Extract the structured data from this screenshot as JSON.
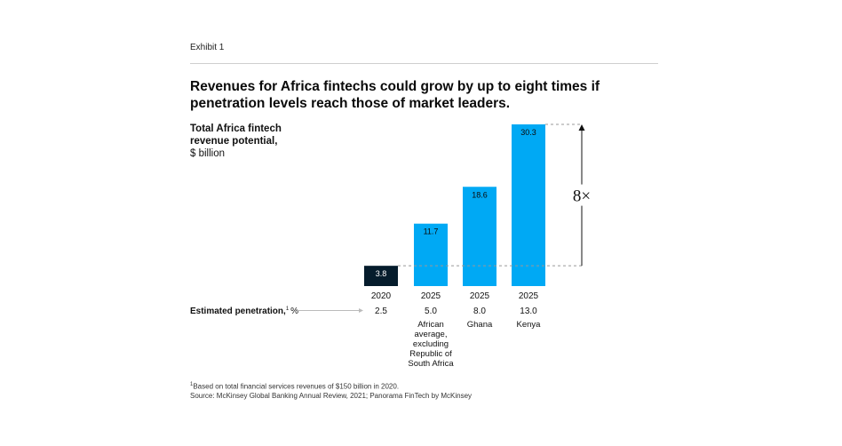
{
  "exhibit_label": "Exhibit 1",
  "title": "Revenues for Africa fintechs could grow by up to eight times if penetration levels reach those of market leaders.",
  "chart_data": {
    "type": "bar",
    "ylabel_line1": "Total Africa fintech revenue potential,",
    "ylabel_units": "$ billion",
    "categories": [
      "2020",
      "2025",
      "2025",
      "2025"
    ],
    "values": [
      3.8,
      11.7,
      18.6,
      30.3
    ],
    "value_labels": [
      "3.8",
      "11.7",
      "18.6",
      "30.3"
    ],
    "bar_colors": [
      "#051c2c",
      "#00a9f4",
      "#00a9f4",
      "#00a9f4"
    ],
    "penetration_label": "Estimated penetration,",
    "penetration_sup": "1",
    "penetration_unit": "%",
    "penetration": [
      "2.5",
      "5.0",
      "8.0",
      "13.0"
    ],
    "scenario_labels": [
      [],
      [
        "African",
        "average,",
        "excluding",
        "Republic of",
        "South Africa"
      ],
      [
        "Ghana"
      ],
      [
        "Kenya"
      ]
    ],
    "multiplier_annotation": "8×",
    "ylim": [
      0,
      30.3
    ],
    "grid": false,
    "legend": "none"
  },
  "footnote": "Based on total financial services revenues of $150 billion in 2020.",
  "footnote_sup": "1",
  "source": "Source: McKinsey Global Banking Annual Review, 2021; Panorama FinTech by McKinsey"
}
